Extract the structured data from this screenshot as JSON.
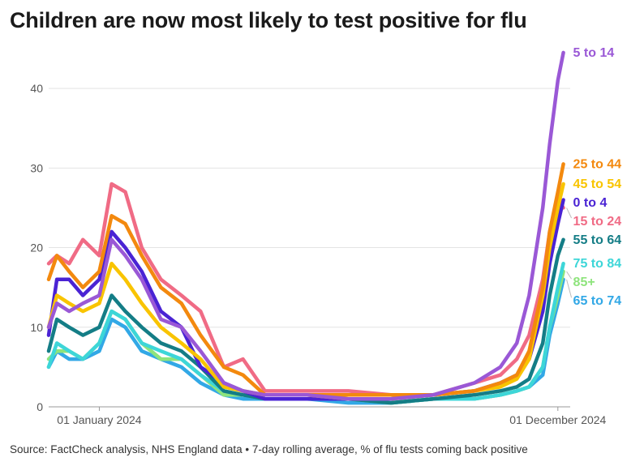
{
  "chart_data": {
    "type": "line",
    "title": "Children are now most likely to test positive for flu",
    "source": "Source: FactCheck analysis, NHS England data • 7-day rolling average, % of flu tests coming back positive",
    "xlabel": "",
    "ylabel": "",
    "ylim": [
      0,
      45
    ],
    "yticks": [
      0,
      10,
      20,
      30,
      40
    ],
    "x_axis": {
      "start": "2023-11-25",
      "end": "2024-12-10"
    },
    "xticks": [
      {
        "date": "2024-01-01",
        "label": "01 January 2024"
      },
      {
        "date": "2024-12-01",
        "label": "01 December 2024"
      }
    ],
    "grid": true,
    "x": [
      "2023-11-25",
      "2023-12-01",
      "2023-12-10",
      "2023-12-20",
      "2024-01-01",
      "2024-01-10",
      "2024-01-20",
      "2024-02-01",
      "2024-02-15",
      "2024-03-01",
      "2024-03-15",
      "2024-04-01",
      "2024-04-15",
      "2024-05-01",
      "2024-06-01",
      "2024-07-01",
      "2024-08-01",
      "2024-09-01",
      "2024-10-01",
      "2024-10-20",
      "2024-11-01",
      "2024-11-10",
      "2024-11-20",
      "2024-11-25",
      "2024-12-01",
      "2024-12-05"
    ],
    "series": [
      {
        "name": "5 to 14",
        "label": "5 to 14",
        "color": "#9a58d6",
        "values": [
          10,
          13,
          12,
          13,
          14,
          21,
          19,
          16,
          11,
          10,
          7,
          3,
          2,
          1.5,
          1.5,
          1,
          1,
          1.5,
          3,
          5,
          8,
          14,
          25,
          33,
          41,
          44.5
        ]
      },
      {
        "name": "25 to 44",
        "label": "25 to 44",
        "color": "#f3890e",
        "values": [
          16,
          19,
          17,
          15,
          17,
          24,
          23,
          19,
          15,
          13,
          9,
          5,
          4,
          1.5,
          1.5,
          1.5,
          1.5,
          1.5,
          2,
          3,
          4,
          7,
          15,
          22,
          27,
          30.5
        ]
      },
      {
        "name": "45 to 54",
        "label": "45 to 54",
        "color": "#f9c400",
        "values": [
          10,
          14,
          13,
          12,
          13,
          18,
          16,
          13,
          10,
          8,
          6,
          2.5,
          2,
          1.5,
          1.5,
          1,
          1,
          1.5,
          2,
          2.5,
          3.5,
          6,
          14,
          20,
          25,
          28
        ]
      },
      {
        "name": "0 to 4",
        "label": "0 to 4",
        "color": "#4a23d4",
        "values": [
          9,
          16,
          16,
          14,
          16,
          22,
          20,
          17,
          12,
          10,
          5,
          3,
          2,
          1,
          1,
          1,
          1,
          1.5,
          2,
          3,
          4,
          6,
          12,
          18,
          23,
          26
        ]
      },
      {
        "name": "15 to 24",
        "label": "15 to 24",
        "color": "#f06b85",
        "values": [
          18,
          19,
          18,
          21,
          19,
          28,
          27,
          20,
          16,
          14,
          12,
          5,
          6,
          2,
          2,
          2,
          1.5,
          1.5,
          3,
          4,
          6,
          9,
          16,
          22,
          26,
          25
        ]
      },
      {
        "name": "55 to 64",
        "label": "55 to 64",
        "color": "#147d86",
        "values": [
          7,
          11,
          10,
          9,
          10,
          14,
          12,
          10,
          8,
          7,
          5,
          2,
          1.5,
          1,
          1,
          1,
          0.5,
          1,
          1.5,
          2,
          2.5,
          3.5,
          8,
          14,
          19,
          21
        ]
      },
      {
        "name": "75 to 84",
        "label": "75 to 84",
        "color": "#3dd6d8",
        "values": [
          5,
          8,
          7,
          6,
          8,
          12,
          11,
          8,
          7,
          6,
          4,
          2,
          1.5,
          1,
          1,
          1,
          0.5,
          1,
          1,
          1.5,
          2,
          2.5,
          5,
          10,
          15,
          18
        ]
      },
      {
        "name": "85+",
        "label": "85+",
        "color": "#8ee47c",
        "values": [
          6,
          7,
          7,
          6,
          8,
          12,
          11,
          8,
          6,
          6,
          4,
          1.5,
          1.5,
          1,
          1,
          1,
          0.5,
          1,
          1,
          1.5,
          2,
          2.5,
          5,
          10,
          14,
          17
        ]
      },
      {
        "name": "65 to 74",
        "label": "65 to 74",
        "color": "#32a8e6",
        "values": [
          5,
          7,
          6,
          6,
          7,
          11,
          10,
          7,
          6,
          5,
          3,
          1.5,
          1,
          1,
          1,
          0.5,
          0.5,
          1,
          1,
          1.5,
          2,
          2.5,
          4,
          9,
          13,
          16
        ]
      }
    ]
  }
}
